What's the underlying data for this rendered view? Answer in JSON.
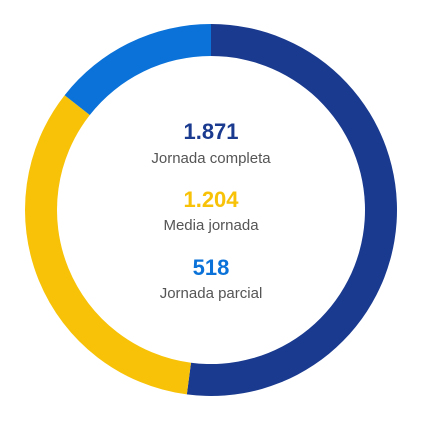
{
  "chart_data": {
    "type": "pie",
    "style": "donut",
    "categories": [
      "Jornada completa",
      "Media jornada",
      "Jornada parcial"
    ],
    "values": [
      1871,
      1204,
      518
    ],
    "display_values": [
      "1.871",
      "1.204",
      "518"
    ],
    "colors": [
      "#1a3a8f",
      "#f7c208",
      "#0a72d9"
    ],
    "start_angle": "top, clockwise"
  }
}
